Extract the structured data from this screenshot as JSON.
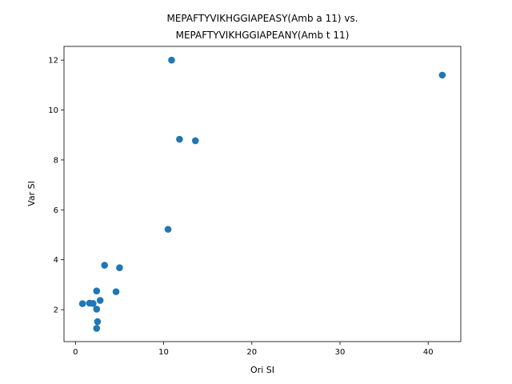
{
  "chart_data": {
    "type": "scatter",
    "title_lines": [
      "MEPAFTYVIKHGGIAPEASY(Amb a 11) vs.",
      "MEPAFTYVIKHGGIAPEANY(Amb t 11)"
    ],
    "xlabel": "Ori SI",
    "ylabel": "Var SI",
    "xlim": [
      -1.3,
      43.7
    ],
    "ylim": [
      0.72,
      12.55
    ],
    "xticks": [
      0,
      10,
      20,
      30,
      40
    ],
    "yticks": [
      2,
      4,
      6,
      8,
      10,
      12
    ],
    "grid": false,
    "color": "#1f77b4",
    "points": [
      {
        "x": 10.9,
        "y": 12.0
      },
      {
        "x": 41.6,
        "y": 11.4
      },
      {
        "x": 11.8,
        "y": 8.83
      },
      {
        "x": 13.6,
        "y": 8.77
      },
      {
        "x": 10.5,
        "y": 5.22
      },
      {
        "x": 3.3,
        "y": 3.78
      },
      {
        "x": 5.0,
        "y": 3.68
      },
      {
        "x": 2.4,
        "y": 2.75
      },
      {
        "x": 4.6,
        "y": 2.72
      },
      {
        "x": 2.8,
        "y": 2.37
      },
      {
        "x": 0.8,
        "y": 2.24
      },
      {
        "x": 1.6,
        "y": 2.26
      },
      {
        "x": 2.0,
        "y": 2.25
      },
      {
        "x": 2.4,
        "y": 2.02
      },
      {
        "x": 2.5,
        "y": 1.52
      },
      {
        "x": 2.4,
        "y": 1.25
      }
    ]
  }
}
